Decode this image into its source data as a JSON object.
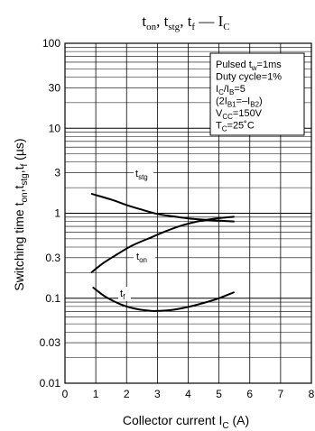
{
  "chart_data": {
    "type": "line",
    "title": "t_on, t_stg, t_f — I_C",
    "title_parts": {
      "t1": "t",
      "s1": "on",
      "sep1": ", t",
      "s2": "stg",
      "sep2": ", t",
      "s3": "f",
      "dash": " — I",
      "s4": "C"
    },
    "xlabel": "Collector current  I_C  (A)",
    "xlabel_parts": {
      "main": "Collector current  I",
      "sub": "C",
      "unit": "  (A)"
    },
    "ylabel": "Switching time  t_on,t_stg,t_f  (µs)",
    "ylabel_parts": {
      "main": "Switching time  t",
      "s1": "on",
      "c1": ",t",
      "s2": "stg",
      "c2": ",t",
      "s3": "f",
      "unit": "  (µs)"
    },
    "xlim": [
      0,
      8
    ],
    "ylim": [
      0.01,
      100
    ],
    "yscale": "log",
    "grid": true,
    "x_ticks": [
      "0",
      "1",
      "2",
      "3",
      "4",
      "5",
      "6",
      "7",
      "8"
    ],
    "y_ticks": [
      {
        "value": 100,
        "label": "100"
      },
      {
        "value": 30,
        "label": "30"
      },
      {
        "value": 10,
        "label": "10"
      },
      {
        "value": 3,
        "label": "3"
      },
      {
        "value": 1,
        "label": "1"
      },
      {
        "value": 0.3,
        "label": "0.3"
      },
      {
        "value": 0.1,
        "label": "0.1"
      },
      {
        "value": 0.03,
        "label": "0.03"
      },
      {
        "value": 0.01,
        "label": "0.01"
      }
    ],
    "conditions": [
      {
        "main": "Pulsed t",
        "sub": "w",
        "rest": "=1ms"
      },
      {
        "main": "Duty cycle=1%",
        "sub": "",
        "rest": ""
      },
      {
        "main": "I",
        "sub": "C",
        "rest": "/I",
        "sub2": "B",
        "rest2": "=5"
      },
      {
        "main": "(2I",
        "sub": "B1",
        "rest": "=–I",
        "sub2": "B2",
        "rest2": ")"
      },
      {
        "main": "V",
        "sub": "CC",
        "rest": "=150V"
      },
      {
        "main": "T",
        "sub": "C",
        "rest": "=25˚C"
      }
    ],
    "series": [
      {
        "name": "t_stg",
        "label_main": "t",
        "label_sub": "stg",
        "x": [
          0.85,
          1.5,
          2.0,
          2.5,
          3.0,
          3.5,
          4.0,
          4.5,
          5.0,
          5.5
        ],
        "y": [
          1.7,
          1.45,
          1.25,
          1.1,
          0.98,
          0.92,
          0.87,
          0.84,
          0.82,
          0.8
        ]
      },
      {
        "name": "t_on",
        "label_main": "t",
        "label_sub": "on",
        "x": [
          0.85,
          1.25,
          1.7,
          2.2,
          2.8,
          3.3,
          3.8,
          4.3,
          4.8,
          5.5
        ],
        "y": [
          0.2,
          0.26,
          0.33,
          0.42,
          0.52,
          0.62,
          0.72,
          0.8,
          0.86,
          0.91
        ]
      },
      {
        "name": "t_f",
        "label_main": "t",
        "label_sub": "f",
        "x": [
          0.9,
          1.3,
          1.8,
          2.3,
          2.8,
          3.0,
          3.5,
          4.0,
          4.5,
          5.0,
          5.5
        ],
        "y": [
          0.135,
          0.105,
          0.085,
          0.075,
          0.071,
          0.071,
          0.073,
          0.079,
          0.088,
          0.1,
          0.118
        ]
      }
    ]
  }
}
